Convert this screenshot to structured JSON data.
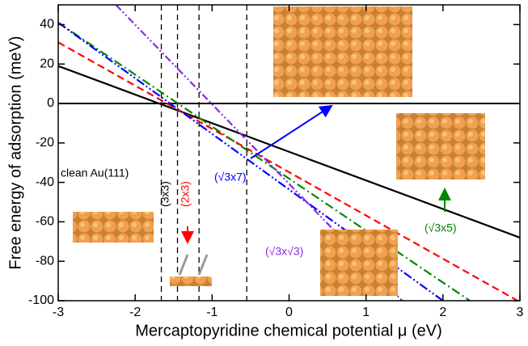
{
  "chart_data": {
    "type": "line",
    "x_label": "Mercaptopyridine chemical potential μ (eV)",
    "y_label": "Free energy of adsorption (meV)",
    "xlim": [
      -3,
      3
    ],
    "ylim": [
      -100,
      50
    ],
    "xticks": [
      -3,
      -2,
      -1,
      0,
      1,
      2,
      3
    ],
    "yticks": [
      -100,
      -80,
      -60,
      -40,
      -20,
      0,
      20,
      40
    ],
    "vlines": [
      -1.66,
      -1.45,
      -1.17,
      -0.55
    ],
    "vline_label": "(3x3)",
    "series": [
      {
        "name": "clean Au(111)",
        "color": "#000000",
        "dash": "",
        "x": [
          -3,
          3
        ],
        "values": [
          19,
          -68
        ]
      },
      {
        "name": "(2x3)",
        "color": "#ff0000",
        "dash": "9,5",
        "x": [
          -3,
          2.97
        ],
        "values": [
          31,
          -100
        ]
      },
      {
        "name": "(√3x5)",
        "color": "#008800",
        "dash": "11,4,2,4",
        "x": [
          -3,
          2.35
        ],
        "values": [
          41,
          -100
        ]
      },
      {
        "name": "(√3x7)",
        "color": "#0000ff",
        "dash": "11,3,2,3,2,3",
        "x": [
          -3,
          2.0
        ],
        "values": [
          41,
          -100
        ]
      },
      {
        "name": "(√3x√3)",
        "color": "#8a2be2",
        "dash": "9,3,2,3,2,3",
        "x": [
          -2.25,
          1.47
        ],
        "values": [
          50,
          -100
        ]
      }
    ]
  }
}
